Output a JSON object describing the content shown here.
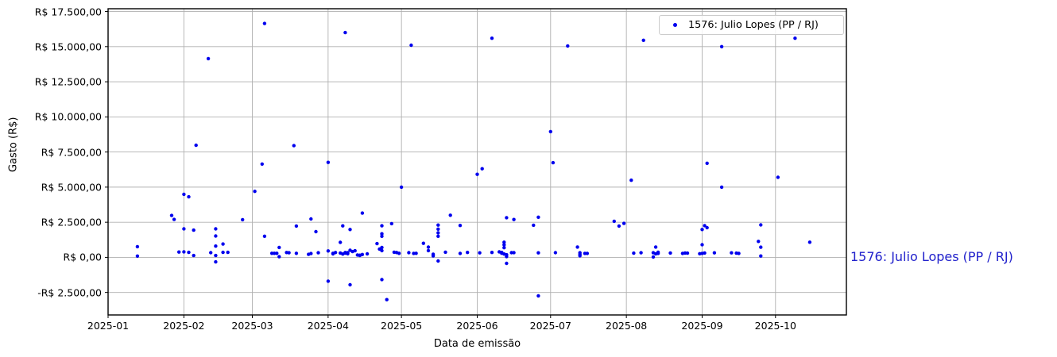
{
  "figure": {
    "xlabel": "Data de emissão",
    "ylabel": "Gasto (R$)",
    "legend": {
      "label": "1576: Julio Lopes (PP / RJ)"
    },
    "annotation": {
      "label": "1576: Julio Lopes (PP / RJ)",
      "color": "#2222cc"
    }
  },
  "chart_data": {
    "type": "scatter",
    "title": "",
    "xlabel": "Data de emissão",
    "ylabel": "Gasto (R$)",
    "grid": true,
    "legend_position": "upper right",
    "point_color": "#0000ee",
    "grid_color": "#b0b0b0",
    "xlim": [
      "2025-01-01",
      "2025-10-30"
    ],
    "ylim": [
      -4100,
      17700
    ],
    "x_ticks": [
      {
        "date": "2025-01-01",
        "label": "2025-01"
      },
      {
        "date": "2025-02-01",
        "label": "2025-02"
      },
      {
        "date": "2025-03-01",
        "label": "2025-03"
      },
      {
        "date": "2025-04-01",
        "label": "2025-04"
      },
      {
        "date": "2025-05-01",
        "label": "2025-05"
      },
      {
        "date": "2025-06-01",
        "label": "2025-06"
      },
      {
        "date": "2025-07-01",
        "label": "2025-07"
      },
      {
        "date": "2025-08-01",
        "label": "2025-08"
      },
      {
        "date": "2025-09-01",
        "label": "2025-09"
      },
      {
        "date": "2025-10-01",
        "label": "2025-10"
      }
    ],
    "y_ticks": [
      {
        "value": 17500,
        "label": "R$ 17.500,00"
      },
      {
        "value": 15000,
        "label": "R$ 15.000,00"
      },
      {
        "value": 12500,
        "label": "R$ 12.500,00"
      },
      {
        "value": 10000,
        "label": "R$ 10.000,00"
      },
      {
        "value": 7500,
        "label": "R$ 7.500,00"
      },
      {
        "value": 5000,
        "label": "R$ 5.000,00"
      },
      {
        "value": 2500,
        "label": "R$ 2.500,00"
      },
      {
        "value": 0,
        "label": "R$ 0,00"
      },
      {
        "value": -2500,
        "label": "-R$ 2.500,00"
      }
    ],
    "series": [
      {
        "name": "1576: Julio Lopes (PP / RJ)",
        "color": "#0000ee",
        "points": [
          [
            "2025-01-13",
            760
          ],
          [
            "2025-01-13",
            90
          ],
          [
            "2025-01-27",
            2980
          ],
          [
            "2025-01-28",
            2700
          ],
          [
            "2025-01-30",
            380
          ],
          [
            "2025-02-01",
            4490
          ],
          [
            "2025-02-03",
            4310
          ],
          [
            "2025-02-06",
            7980
          ],
          [
            "2025-02-01",
            2030
          ],
          [
            "2025-02-05",
            1940
          ],
          [
            "2025-02-01",
            390
          ],
          [
            "2025-02-03",
            355
          ],
          [
            "2025-02-05",
            130
          ],
          [
            "2025-02-11",
            14150
          ],
          [
            "2025-02-12",
            335
          ],
          [
            "2025-02-14",
            2030
          ],
          [
            "2025-02-14",
            1520
          ],
          [
            "2025-02-14",
            800
          ],
          [
            "2025-02-14",
            130
          ],
          [
            "2025-02-14",
            -320
          ],
          [
            "2025-02-17",
            950
          ],
          [
            "2025-02-17",
            355
          ],
          [
            "2025-02-19",
            355
          ],
          [
            "2025-02-25",
            2685
          ],
          [
            "2025-03-02",
            4700
          ],
          [
            "2025-03-05",
            6640
          ],
          [
            "2025-03-06",
            16650
          ],
          [
            "2025-03-06",
            1500
          ],
          [
            "2025-03-09",
            290
          ],
          [
            "2025-03-10",
            290
          ],
          [
            "2025-03-11",
            290
          ],
          [
            "2025-03-12",
            705
          ],
          [
            "2025-03-12",
            45
          ],
          [
            "2025-03-15",
            345
          ],
          [
            "2025-03-16",
            330
          ],
          [
            "2025-03-18",
            7950
          ],
          [
            "2025-03-19",
            2230
          ],
          [
            "2025-03-19",
            290
          ],
          [
            "2025-03-24",
            215
          ],
          [
            "2025-03-25",
            2735
          ],
          [
            "2025-03-25",
            270
          ],
          [
            "2025-03-27",
            1830
          ],
          [
            "2025-03-28",
            325
          ],
          [
            "2025-04-01",
            6760
          ],
          [
            "2025-04-01",
            460
          ],
          [
            "2025-04-01",
            -1695
          ],
          [
            "2025-04-03",
            290
          ],
          [
            "2025-04-03",
            250
          ],
          [
            "2025-04-04",
            345
          ],
          [
            "2025-04-06",
            1070
          ],
          [
            "2025-04-06",
            310
          ],
          [
            "2025-04-07",
            2245
          ],
          [
            "2025-04-07",
            235
          ],
          [
            "2025-04-08",
            16000
          ],
          [
            "2025-04-08",
            345
          ],
          [
            "2025-04-08",
            300
          ],
          [
            "2025-04-09",
            335
          ],
          [
            "2025-04-09",
            260
          ],
          [
            "2025-04-10",
            1980
          ],
          [
            "2025-04-10",
            510
          ],
          [
            "2025-04-10",
            -1950
          ],
          [
            "2025-04-11",
            415
          ],
          [
            "2025-04-12",
            470
          ],
          [
            "2025-04-13",
            170
          ],
          [
            "2025-04-14",
            150
          ],
          [
            "2025-04-14",
            130
          ],
          [
            "2025-04-15",
            205
          ],
          [
            "2025-04-15",
            3150
          ],
          [
            "2025-04-17",
            250
          ],
          [
            "2025-04-21",
            975
          ],
          [
            "2025-04-22",
            590
          ],
          [
            "2025-04-23",
            480
          ],
          [
            "2025-04-23",
            705
          ],
          [
            "2025-04-23",
            2250
          ],
          [
            "2025-04-23",
            1680
          ],
          [
            "2025-04-23",
            1500
          ],
          [
            "2025-04-23",
            -1580
          ],
          [
            "2025-04-25",
            -3010
          ],
          [
            "2025-04-27",
            2400
          ],
          [
            "2025-04-28",
            365
          ],
          [
            "2025-04-29",
            345
          ],
          [
            "2025-04-30",
            290
          ],
          [
            "2025-05-01",
            5000
          ],
          [
            "2025-05-04",
            335
          ],
          [
            "2025-05-05",
            15100
          ],
          [
            "2025-05-06",
            280
          ],
          [
            "2025-05-07",
            290
          ],
          [
            "2025-05-10",
            1000
          ],
          [
            "2025-05-12",
            480
          ],
          [
            "2025-05-12",
            730
          ],
          [
            "2025-05-14",
            225
          ],
          [
            "2025-05-14",
            100
          ],
          [
            "2025-05-16",
            2300
          ],
          [
            "2025-05-16",
            2010
          ],
          [
            "2025-05-16",
            1745
          ],
          [
            "2025-05-16",
            1500
          ],
          [
            "2025-05-16",
            -260
          ],
          [
            "2025-05-19",
            370
          ],
          [
            "2025-05-21",
            3000
          ],
          [
            "2025-05-25",
            2270
          ],
          [
            "2025-05-25",
            280
          ],
          [
            "2025-05-28",
            350
          ],
          [
            "2025-06-01",
            5915
          ],
          [
            "2025-06-02",
            320
          ],
          [
            "2025-06-03",
            6310
          ],
          [
            "2025-06-07",
            15600
          ],
          [
            "2025-06-07",
            350
          ],
          [
            "2025-06-10",
            390
          ],
          [
            "2025-06-11",
            350
          ],
          [
            "2025-06-11",
            295
          ],
          [
            "2025-06-12",
            240
          ],
          [
            "2025-06-13",
            185
          ],
          [
            "2025-06-13",
            55
          ],
          [
            "2025-06-12",
            1080
          ],
          [
            "2025-06-12",
            895
          ],
          [
            "2025-06-12",
            690
          ],
          [
            "2025-06-13",
            2825
          ],
          [
            "2025-06-13",
            -430
          ],
          [
            "2025-06-15",
            335
          ],
          [
            "2025-06-16",
            2695
          ],
          [
            "2025-06-16",
            335
          ],
          [
            "2025-06-24",
            2290
          ],
          [
            "2025-06-26",
            2860
          ],
          [
            "2025-06-26",
            320
          ],
          [
            "2025-06-26",
            -2740
          ],
          [
            "2025-07-01",
            8950
          ],
          [
            "2025-07-02",
            6740
          ],
          [
            "2025-07-03",
            335
          ],
          [
            "2025-07-08",
            15050
          ],
          [
            "2025-07-12",
            735
          ],
          [
            "2025-07-13",
            325
          ],
          [
            "2025-07-13",
            215
          ],
          [
            "2025-07-13",
            105
          ],
          [
            "2025-07-15",
            280
          ],
          [
            "2025-07-16",
            280
          ],
          [
            "2025-07-27",
            2570
          ],
          [
            "2025-07-29",
            2230
          ],
          [
            "2025-07-31",
            2420
          ],
          [
            "2025-08-03",
            5490
          ],
          [
            "2025-08-04",
            300
          ],
          [
            "2025-08-07",
            330
          ],
          [
            "2025-08-08",
            15450
          ],
          [
            "2025-08-12",
            325
          ],
          [
            "2025-08-12",
            30
          ],
          [
            "2025-08-13",
            250
          ],
          [
            "2025-08-13",
            735
          ],
          [
            "2025-08-14",
            365
          ],
          [
            "2025-08-14",
            280
          ],
          [
            "2025-08-19",
            310
          ],
          [
            "2025-08-24",
            280
          ],
          [
            "2025-08-25",
            310
          ],
          [
            "2025-08-26",
            300
          ],
          [
            "2025-08-31",
            260
          ],
          [
            "2025-09-01",
            280
          ],
          [
            "2025-09-02",
            310
          ],
          [
            "2025-09-01",
            900
          ],
          [
            "2025-09-01",
            1980
          ],
          [
            "2025-09-02",
            2260
          ],
          [
            "2025-09-03",
            2110
          ],
          [
            "2025-09-03",
            6700
          ],
          [
            "2025-09-06",
            320
          ],
          [
            "2025-09-09",
            5000
          ],
          [
            "2025-09-09",
            15000
          ],
          [
            "2025-09-13",
            320
          ],
          [
            "2025-09-15",
            300
          ],
          [
            "2025-09-16",
            280
          ],
          [
            "2025-09-24",
            1135
          ],
          [
            "2025-09-25",
            2310
          ],
          [
            "2025-09-25",
            725
          ],
          [
            "2025-09-25",
            95
          ],
          [
            "2025-10-02",
            5700
          ],
          [
            "2025-10-09",
            15600
          ],
          [
            "2025-10-15",
            1080
          ]
        ]
      }
    ]
  }
}
